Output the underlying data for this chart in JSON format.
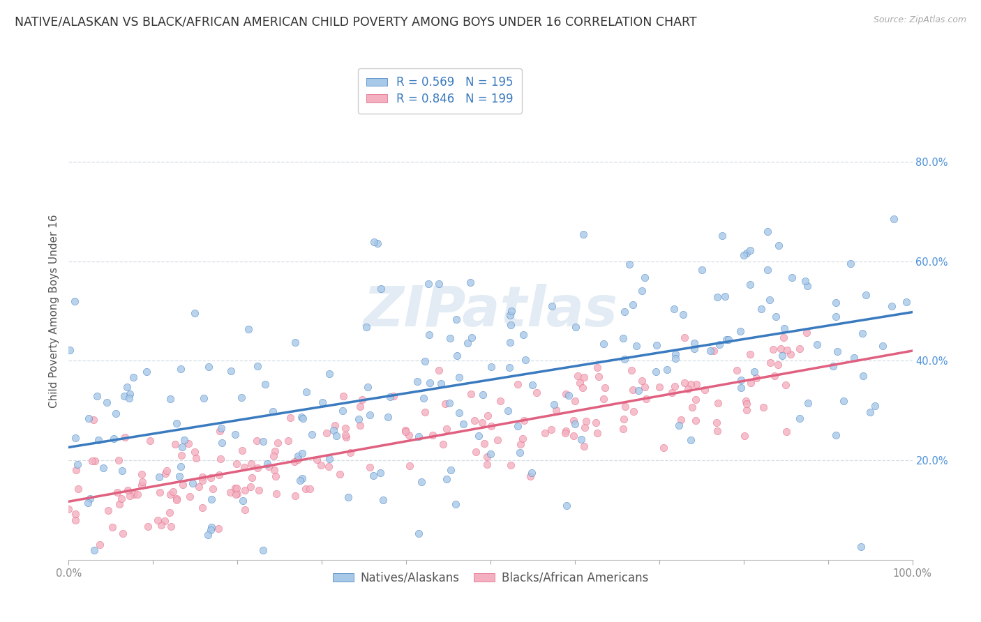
{
  "title": "NATIVE/ALASKAN VS BLACK/AFRICAN AMERICAN CHILD POVERTY AMONG BOYS UNDER 16 CORRELATION CHART",
  "source": "Source: ZipAtlas.com",
  "ylabel": "Child Poverty Among Boys Under 16",
  "xlim": [
    0,
    1
  ],
  "ylim": [
    0,
    1
  ],
  "xtick_edges": [
    0.0,
    1.0
  ],
  "xtick_edge_labels": [
    "0.0%",
    "100.0%"
  ],
  "xtick_minor": [
    0.1,
    0.2,
    0.3,
    0.4,
    0.5,
    0.6,
    0.7,
    0.8,
    0.9
  ],
  "yticks": [
    0.2,
    0.4,
    0.6,
    0.8
  ],
  "yticklabels": [
    "20.0%",
    "40.0%",
    "60.0%",
    "80.0%"
  ],
  "blue_R": 0.569,
  "blue_N": 195,
  "pink_R": 0.846,
  "pink_N": 199,
  "blue_color": "#a8c8e8",
  "blue_line_color": "#3a7abf",
  "pink_color": "#f4b0c0",
  "pink_line_color": "#e06080",
  "scatter_alpha": 0.8,
  "scatter_size": 55,
  "legend_label_blue": "Natives/Alaskans",
  "legend_label_pink": "Blacks/African Americans",
  "watermark": "ZIPatlas",
  "watermark_color": "#ccdcec",
  "background_color": "#ffffff",
  "grid_color": "#d5dde5",
  "title_fontsize": 12.5,
  "axis_label_fontsize": 11,
  "tick_fontsize": 10.5,
  "legend_fontsize": 12,
  "blue_seed": 7,
  "pink_seed": 13,
  "blue_intercept": 0.24,
  "blue_slope": 0.26,
  "blue_noise": 0.13,
  "pink_intercept": 0.12,
  "pink_slope": 0.3,
  "pink_noise": 0.055
}
